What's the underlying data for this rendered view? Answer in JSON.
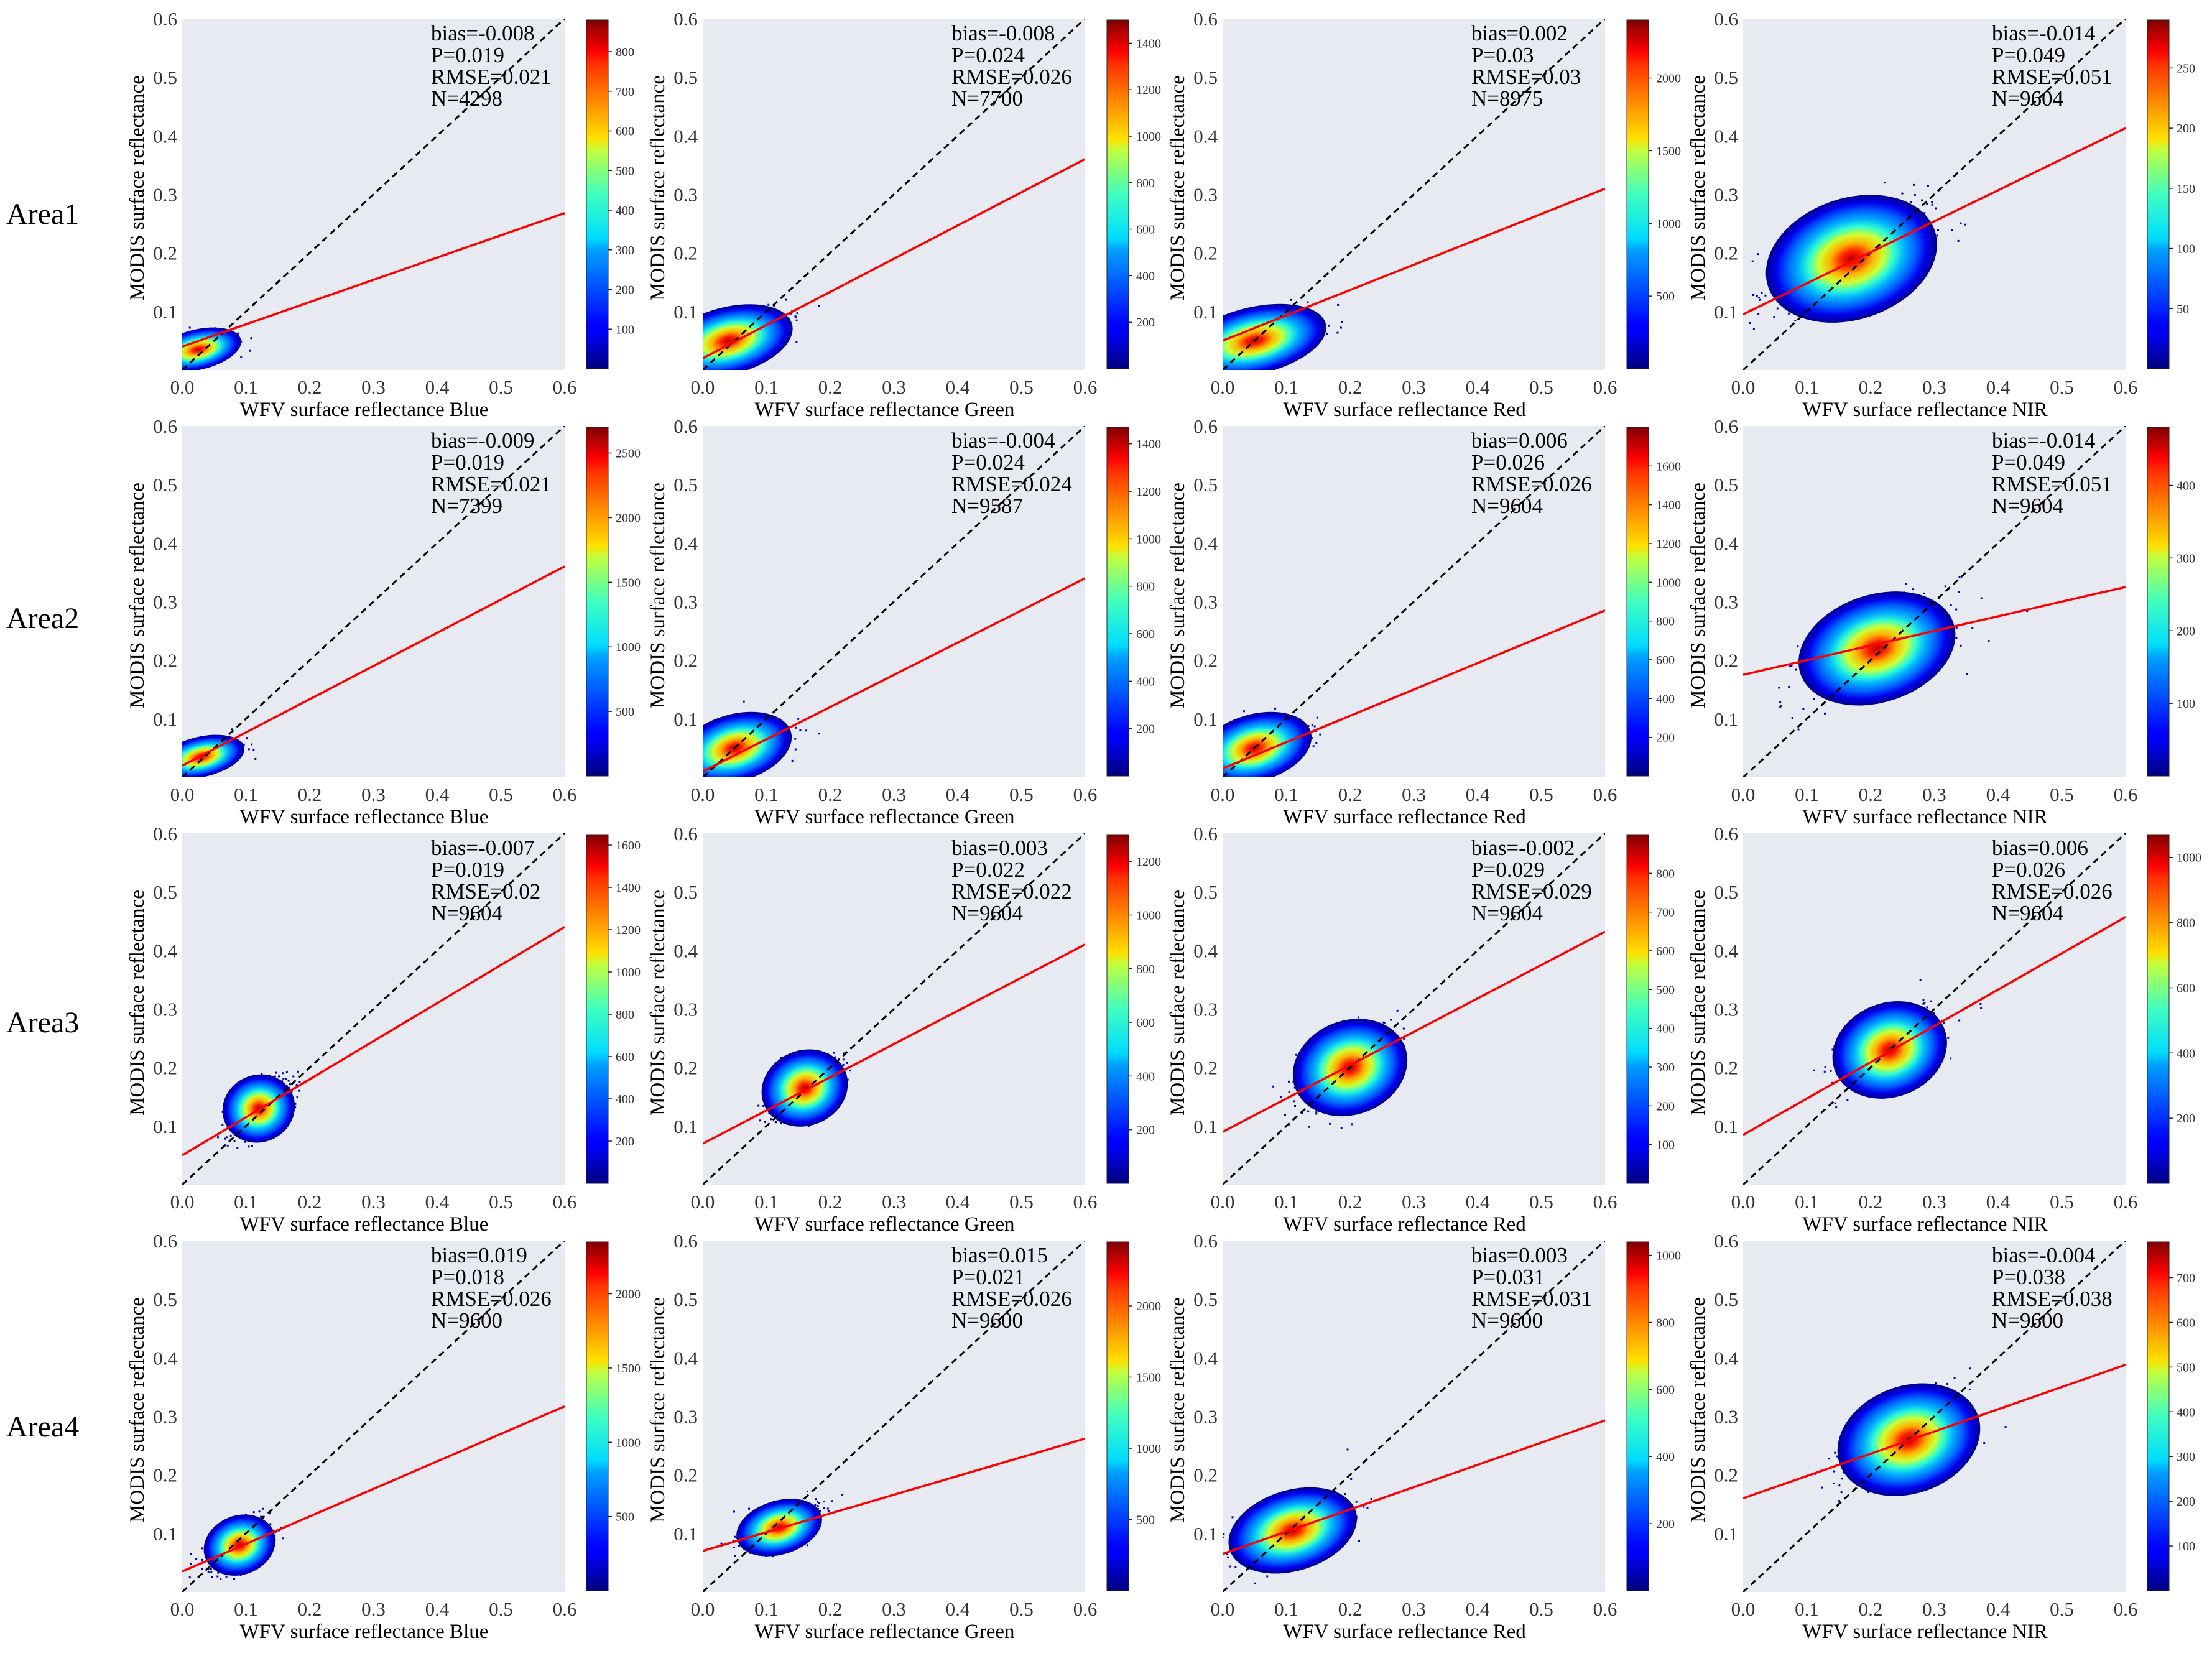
{
  "figure": {
    "common": {
      "ylabel": "MODIS surface reflectance",
      "xlabel_prefix": "WFV surface reflectance",
      "xlim": [
        0,
        0.6
      ],
      "ylim": [
        0,
        0.6
      ],
      "x_ticks": [
        "0.0",
        "0.1",
        "0.2",
        "0.3",
        "0.4",
        "0.5",
        "0.6"
      ],
      "y_ticks": [
        "0.1",
        "0.2",
        "0.3",
        "0.4",
        "0.5",
        "0.6"
      ],
      "plot_background": "#e8eaf2",
      "regression_color": "#ff0000",
      "identity_line_color": "#000000"
    },
    "rows": [
      "Area1",
      "Area2",
      "Area3",
      "Area4"
    ],
    "bands": [
      "Blue",
      "Green",
      "Red",
      "NIR"
    ]
  },
  "chart_data": [
    {
      "type": "scatter",
      "row": "Area1",
      "band": "Blue",
      "xlabel": "WFV surface reflectance Blue",
      "ylabel": "MODIS surface reflectance",
      "stats": [
        "bias=-0.008",
        "P=0.019",
        "RMSE=0.021",
        "N=4298"
      ],
      "regression": {
        "slope": 0.38,
        "intercept": 0.04
      },
      "cluster": {
        "cx": 0.025,
        "cy": 0.035,
        "sx": 0.03,
        "sy": 0.015
      },
      "colorbar": {
        "ticks": [
          "100",
          "200",
          "300",
          "400",
          "500",
          "600",
          "700",
          "800"
        ],
        "max": 880
      }
    },
    {
      "type": "scatter",
      "row": "Area1",
      "band": "Green",
      "xlabel": "WFV surface reflectance Green",
      "ylabel": "MODIS surface reflectance",
      "stats": [
        "bias=-0.008",
        "P=0.024",
        "RMSE=0.026",
        "N=7700"
      ],
      "regression": {
        "slope": 0.567,
        "intercept": 0.02
      },
      "cluster": {
        "cx": 0.04,
        "cy": 0.05,
        "sx": 0.045,
        "sy": 0.025
      },
      "colorbar": {
        "ticks": [
          "200",
          "400",
          "600",
          "800",
          "1000",
          "1200",
          "1400"
        ],
        "max": 1500
      }
    },
    {
      "type": "scatter",
      "row": "Area1",
      "band": "Red",
      "xlabel": "WFV surface reflectance Red",
      "ylabel": "MODIS surface reflectance",
      "stats": [
        "bias=0.002",
        "P=0.03",
        "RMSE=0.03",
        "N=8975"
      ],
      "regression": {
        "slope": 0.433,
        "intercept": 0.05
      },
      "cluster": {
        "cx": 0.05,
        "cy": 0.05,
        "sx": 0.05,
        "sy": 0.025
      },
      "colorbar": {
        "ticks": [
          "500",
          "1000",
          "1500",
          "2000"
        ],
        "max": 2400
      }
    },
    {
      "type": "scatter",
      "row": "Area1",
      "band": "NIR",
      "xlabel": "WFV surface reflectance NIR",
      "ylabel": "MODIS surface reflectance",
      "stats": [
        "bias=-0.014",
        "P=0.049",
        "RMSE=0.051",
        "N=9604"
      ],
      "regression": {
        "slope": 0.53,
        "intercept": 0.095
      },
      "cluster": {
        "cx": 0.17,
        "cy": 0.19,
        "sx": 0.06,
        "sy": 0.045
      },
      "colorbar": {
        "ticks": [
          "50",
          "100",
          "150",
          "200",
          "250"
        ],
        "max": 290
      }
    },
    {
      "type": "scatter",
      "row": "Area2",
      "band": "Blue",
      "xlabel": "WFV surface reflectance Blue",
      "ylabel": "MODIS surface reflectance",
      "stats": [
        "bias=-0.009",
        "P=0.019",
        "RMSE=0.021",
        "N=7399"
      ],
      "regression": {
        "slope": 0.567,
        "intercept": 0.02
      },
      "cluster": {
        "cx": 0.03,
        "cy": 0.035,
        "sx": 0.03,
        "sy": 0.015
      },
      "colorbar": {
        "ticks": [
          "500",
          "1000",
          "1500",
          "2000",
          "2500"
        ],
        "max": 2700
      }
    },
    {
      "type": "scatter",
      "row": "Area2",
      "band": "Green",
      "xlabel": "WFV surface reflectance Green",
      "ylabel": "MODIS surface reflectance",
      "stats": [
        "bias=-0.004",
        "P=0.024",
        "RMSE=0.024",
        "N=9587"
      ],
      "regression": {
        "slope": 0.55,
        "intercept": 0.01
      },
      "cluster": {
        "cx": 0.05,
        "cy": 0.05,
        "sx": 0.04,
        "sy": 0.025
      },
      "colorbar": {
        "ticks": [
          "200",
          "400",
          "600",
          "800",
          "1000",
          "1200",
          "1400"
        ],
        "max": 1470
      }
    },
    {
      "type": "scatter",
      "row": "Area2",
      "band": "Red",
      "xlabel": "WFV surface reflectance Red",
      "ylabel": "MODIS surface reflectance",
      "stats": [
        "bias=0.006",
        "P=0.026",
        "RMSE=0.026",
        "N=9604"
      ],
      "regression": {
        "slope": 0.45,
        "intercept": 0.015
      },
      "cluster": {
        "cx": 0.05,
        "cy": 0.05,
        "sx": 0.04,
        "sy": 0.025
      },
      "colorbar": {
        "ticks": [
          "200",
          "400",
          "600",
          "800",
          "1000",
          "1200",
          "1400",
          "1600"
        ],
        "max": 1800
      }
    },
    {
      "type": "scatter",
      "row": "Area2",
      "band": "NIR",
      "xlabel": "WFV surface reflectance NIR",
      "ylabel": "MODIS surface reflectance",
      "stats": [
        "bias=-0.014",
        "P=0.049",
        "RMSE=0.051",
        "N=9604"
      ],
      "regression": {
        "slope": 0.25,
        "intercept": 0.175
      },
      "cluster": {
        "cx": 0.21,
        "cy": 0.22,
        "sx": 0.055,
        "sy": 0.04
      },
      "colorbar": {
        "ticks": [
          "100",
          "200",
          "300",
          "400"
        ],
        "max": 480
      }
    },
    {
      "type": "scatter",
      "row": "Area3",
      "band": "Blue",
      "xlabel": "WFV surface reflectance Blue",
      "ylabel": "MODIS surface reflectance",
      "stats": [
        "bias=-0.007",
        "P=0.019",
        "RMSE=0.02",
        "N=9604"
      ],
      "regression": {
        "slope": 0.65,
        "intercept": 0.05
      },
      "cluster": {
        "cx": 0.12,
        "cy": 0.13,
        "sx": 0.025,
        "sy": 0.025
      },
      "colorbar": {
        "ticks": [
          "200",
          "400",
          "600",
          "800",
          "1000",
          "1200",
          "1400",
          "1600"
        ],
        "max": 1650
      }
    },
    {
      "type": "scatter",
      "row": "Area3",
      "band": "Green",
      "xlabel": "WFV surface reflectance Green",
      "ylabel": "MODIS surface reflectance",
      "stats": [
        "bias=0.003",
        "P=0.022",
        "RMSE=0.022",
        "N=9604"
      ],
      "regression": {
        "slope": 0.567,
        "intercept": 0.07
      },
      "cluster": {
        "cx": 0.16,
        "cy": 0.165,
        "sx": 0.03,
        "sy": 0.028
      },
      "colorbar": {
        "ticks": [
          "200",
          "400",
          "600",
          "800",
          "1000",
          "1200"
        ],
        "max": 1300
      }
    },
    {
      "type": "scatter",
      "row": "Area3",
      "band": "Red",
      "xlabel": "WFV surface reflectance Red",
      "ylabel": "MODIS surface reflectance",
      "stats": [
        "bias=-0.002",
        "P=0.029",
        "RMSE=0.029",
        "N=9604"
      ],
      "regression": {
        "slope": 0.57,
        "intercept": 0.09
      },
      "cluster": {
        "cx": 0.2,
        "cy": 0.2,
        "sx": 0.04,
        "sy": 0.035
      },
      "colorbar": {
        "ticks": [
          "100",
          "200",
          "300",
          "400",
          "500",
          "600",
          "700",
          "800"
        ],
        "max": 900
      }
    },
    {
      "type": "scatter",
      "row": "Area3",
      "band": "NIR",
      "xlabel": "WFV surface reflectance NIR",
      "ylabel": "MODIS surface reflectance",
      "stats": [
        "bias=0.006",
        "P=0.026",
        "RMSE=0.026",
        "N=9604"
      ],
      "regression": {
        "slope": 0.62,
        "intercept": 0.085
      },
      "cluster": {
        "cx": 0.23,
        "cy": 0.23,
        "sx": 0.04,
        "sy": 0.035
      },
      "colorbar": {
        "ticks": [
          "200",
          "400",
          "600",
          "800",
          "1000"
        ],
        "max": 1070
      }
    },
    {
      "type": "scatter",
      "row": "Area4",
      "band": "Blue",
      "xlabel": "WFV surface reflectance Blue",
      "ylabel": "MODIS surface reflectance",
      "stats": [
        "bias=0.019",
        "P=0.018",
        "RMSE=0.026",
        "N=9600"
      ],
      "regression": {
        "slope": 0.47,
        "intercept": 0.035
      },
      "cluster": {
        "cx": 0.09,
        "cy": 0.08,
        "sx": 0.025,
        "sy": 0.022
      },
      "colorbar": {
        "ticks": [
          "500",
          "1000",
          "1500",
          "2000"
        ],
        "max": 2350
      }
    },
    {
      "type": "scatter",
      "row": "Area4",
      "band": "Green",
      "xlabel": "WFV surface reflectance Green",
      "ylabel": "MODIS surface reflectance",
      "stats": [
        "bias=0.015",
        "P=0.021",
        "RMSE=0.026",
        "N=9600"
      ],
      "regression": {
        "slope": 0.32,
        "intercept": 0.07
      },
      "cluster": {
        "cx": 0.12,
        "cy": 0.11,
        "sx": 0.03,
        "sy": 0.02
      },
      "colorbar": {
        "ticks": [
          "500",
          "1000",
          "1500",
          "2000"
        ],
        "max": 2450
      }
    },
    {
      "type": "scatter",
      "row": "Area4",
      "band": "Red",
      "xlabel": "WFV surface reflectance Red",
      "ylabel": "MODIS surface reflectance",
      "stats": [
        "bias=0.003",
        "P=0.031",
        "RMSE=0.031",
        "N=9600"
      ],
      "regression": {
        "slope": 0.38,
        "intercept": 0.065
      },
      "cluster": {
        "cx": 0.11,
        "cy": 0.105,
        "sx": 0.045,
        "sy": 0.03
      },
      "colorbar": {
        "ticks": [
          "200",
          "400",
          "600",
          "800",
          "1000"
        ],
        "max": 1040
      }
    },
    {
      "type": "scatter",
      "row": "Area4",
      "band": "NIR",
      "xlabel": "WFV surface reflectance NIR",
      "ylabel": "MODIS surface reflectance",
      "stats": [
        "bias=-0.004",
        "P=0.038",
        "RMSE=0.038",
        "N=9600"
      ],
      "regression": {
        "slope": 0.38,
        "intercept": 0.16
      },
      "cluster": {
        "cx": 0.26,
        "cy": 0.26,
        "sx": 0.05,
        "sy": 0.04
      },
      "colorbar": {
        "ticks": [
          "100",
          "200",
          "300",
          "400",
          "500",
          "600",
          "700"
        ],
        "max": 780
      }
    }
  ]
}
